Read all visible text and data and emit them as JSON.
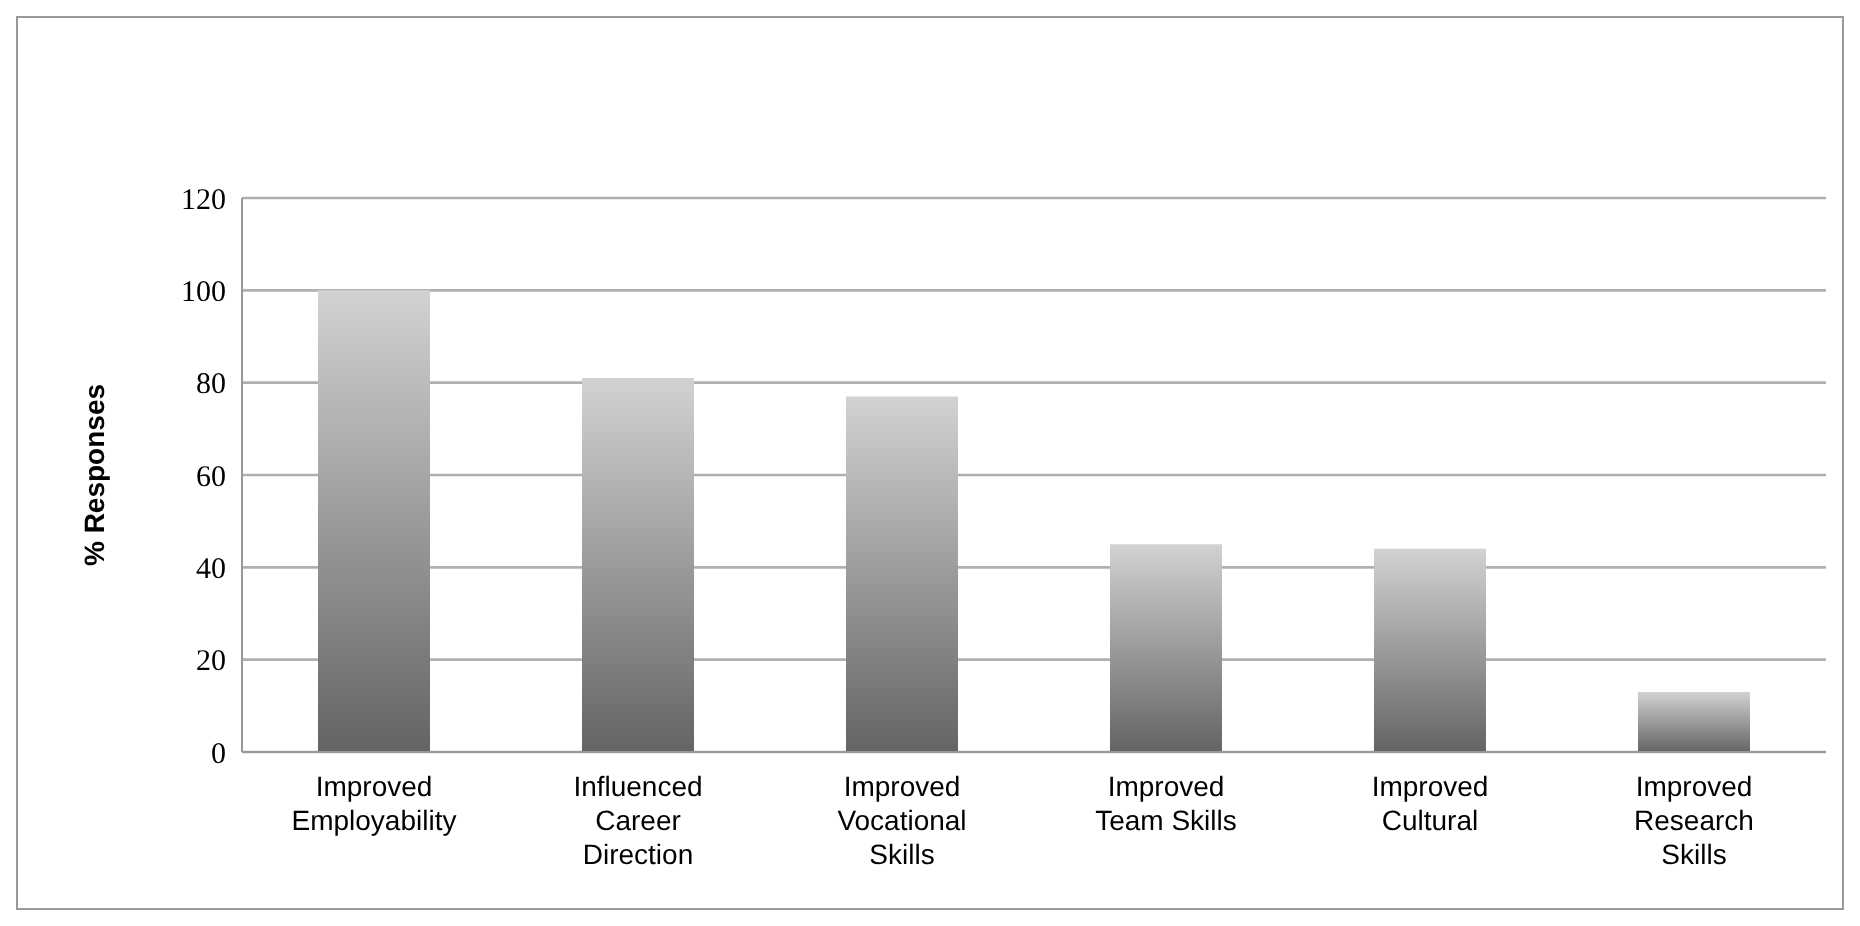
{
  "chart_data": {
    "type": "bar",
    "ylabel": "% Responses",
    "categories": [
      "Improved Employability",
      "Influenced Career Direction",
      "Improved Vocational Skills",
      "Improved Team Skills",
      "Improved Cultural",
      "Improved Research Skills"
    ],
    "values": [
      100,
      81,
      77,
      45,
      44,
      13
    ],
    "color": "#9a9a9a",
    "ylim": [
      0,
      120
    ],
    "yticks": [
      0,
      20,
      40,
      60,
      80,
      100,
      120
    ],
    "grid": "y"
  }
}
